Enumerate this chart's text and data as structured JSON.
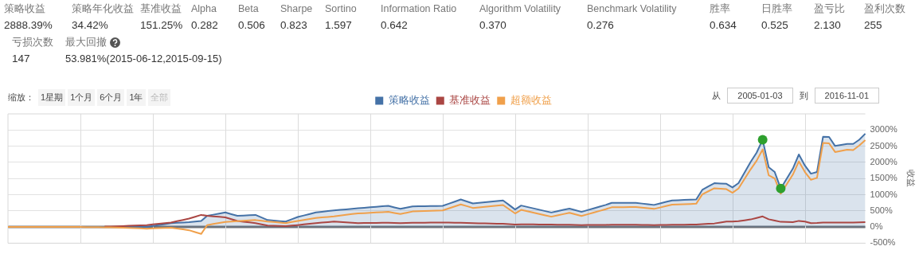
{
  "chart_data": {
    "type": "line",
    "ylabel": "收益",
    "annotations": [
      "策略收益",
      "2888.39%",
      "策略年化收益",
      "34.42%",
      "基准收益",
      "151.25%",
      "Alpha",
      "0.282",
      "Beta",
      "0.506",
      "Sharpe",
      "0.823",
      "Sortino",
      "1.597",
      "Information Ratio",
      "0.642",
      "Algorithm Volatility",
      "0.370",
      "Benchmark Volatility",
      "0.276",
      "胜率",
      "0.634",
      "日胜率",
      "0.525",
      "盈亏比",
      "2.130",
      "盈利次数",
      "255",
      "亏损次数",
      "147",
      "最大回撤",
      "53.981%(2015-06-12,2015-09-15)",
      "缩放：",
      "1星期",
      "1个月",
      "6个月",
      "1年",
      "全部",
      "从",
      "2005-01-03",
      "到",
      "2016-11-01"
    ],
    "categories": [
      null,
      null,
      null,
      null,
      null,
      null,
      null,
      null,
      null,
      null,
      null,
      null,
      null,
      null,
      null,
      null,
      null,
      null,
      null,
      null,
      null,
      null,
      null,
      null,
      null,
      null,
      null,
      null,
      null,
      null,
      null,
      null,
      null,
      null,
      null,
      null,
      null,
      null,
      null,
      null,
      null,
      null,
      null,
      null,
      null,
      null,
      null,
      null,
      null,
      null,
      null,
      null,
      null,
      null,
      null,
      null,
      null,
      null,
      null,
      null,
      null,
      null,
      null,
      null,
      null,
      null,
      null,
      null,
      null,
      null,
      null,
      null,
      null,
      null,
      null,
      null,
      null,
      null,
      null,
      null,
      null,
      null,
      null,
      null,
      null,
      null,
      null,
      null,
      null,
      null,
      null,
      null,
      null,
      null,
      null,
      null,
      null,
      null,
      null,
      null,
      null,
      null,
      null,
      null,
      null,
      null,
      null,
      null,
      null,
      null,
      null,
      null,
      null,
      null,
      null,
      null,
      null,
      null,
      null,
      null,
      null,
      null,
      null,
      null,
      null,
      null,
      null,
      null,
      null,
      null,
      null,
      null,
      null,
      null,
      null,
      null,
      null,
      null,
      null,
      null,
      null,
      null,
      null
    ],
    "series": [
      {
        "name": "策略收益",
        "type": "area",
        "color": "#4572a7",
        "values": [
          0,
          0,
          0,
          0,
          0,
          0,
          0,
          0,
          0,
          0,
          0,
          0,
          0,
          0,
          0,
          0,
          0,
          5,
          5,
          5,
          5,
          5,
          5,
          5,
          34,
          63,
          91,
          120,
          130,
          140,
          150,
          168,
          187,
          346,
          381,
          415,
          450,
          398,
          346,
          355,
          365,
          374,
          295,
          215,
          199,
          184,
          168,
          238,
          309,
          356,
          403,
          450,
          471,
          493,
          514,
          531,
          547,
          564,
          580,
          595,
          610,
          625,
          640,
          655,
          608,
          561,
          599,
          636,
          640,
          644,
          647,
          651,
          655,
          720,
          786,
          851,
          790,
          729,
          748,
          767,
          785,
          804,
          823,
          683,
          542,
          664,
          621,
          578,
          535,
          492,
          449,
          489,
          530,
          570,
          519,
          468,
          522,
          576,
          629,
          683,
          748,
          748,
          748,
          748,
          748,
          726,
          705,
          683,
          730,
          776,
          823,
          830,
          837,
          844,
          851,
          1150,
          1253,
          1356,
          1347,
          1337,
          1225,
          1356,
          1683,
          2010,
          2300,
          2700,
          1850,
          1700,
          1190,
          1498,
          1805,
          2244,
          1900,
          1650,
          1700,
          2790,
          2786,
          2506,
          2539,
          2571,
          2570,
          2700,
          2888
        ]
      },
      {
        "name": "基准收益",
        "color": "#aa4643",
        "values": [
          null,
          null,
          null,
          null,
          null,
          null,
          null,
          null,
          null,
          null,
          null,
          null,
          null,
          null,
          null,
          null,
          12,
          15,
          23,
          30,
          38,
          45,
          53,
          60,
          80,
          100,
          120,
          140,
          180,
          220,
          260,
          317,
          374,
          346,
          331,
          315,
          300,
          244,
          187,
          165,
          142,
          120,
          84,
          47,
          41,
          34,
          28,
          44,
          60,
          80,
          100,
          120,
          136,
          152,
          168,
          157,
          145,
          134,
          122,
          124,
          126,
          128,
          129,
          130,
          125,
          120,
          125,
          130,
          132,
          134,
          136,
          138,
          140,
          137,
          133,
          130,
          125,
          120,
          116,
          112,
          108,
          104,
          100,
          88,
          75,
          85,
          83,
          81,
          79,
          77,
          75,
          73,
          72,
          70,
          65,
          60,
          61,
          63,
          64,
          65,
          70,
          70,
          70,
          70,
          70,
          67,
          63,
          60,
          63,
          67,
          70,
          71,
          73,
          74,
          75,
          90,
          100,
          110,
          139,
          168,
          170,
          180,
          207,
          234,
          280,
          327,
          240,
          200,
          160,
          155,
          150,
          190,
          170,
          120,
          125,
          135,
          140,
          135,
          138,
          140,
          140,
          145,
          150
        ]
      },
      {
        "name": "超额收益",
        "color": "#f0a04b",
        "values": [
          0,
          1,
          2,
          3,
          4,
          5,
          5,
          4,
          3,
          2,
          1,
          1,
          0,
          -2,
          -4,
          -6,
          -8,
          -10,
          -17,
          -23,
          -30,
          -37,
          -43,
          -50,
          -43,
          -35,
          -28,
          -20,
          -47,
          -73,
          -100,
          -158,
          -215,
          60,
          93,
          126,
          159,
          170,
          180,
          192,
          203,
          215,
          193,
          170,
          154,
          138,
          122,
          155,
          187,
          218,
          249,
          280,
          296,
          311,
          327,
          351,
          376,
          400,
          420,
          430,
          440,
          449,
          459,
          468,
          435,
          402,
          441,
          480,
          487,
          494,
          500,
          507,
          514,
          576,
          638,
          700,
          645,
          590,
          608,
          626,
          644,
          662,
          680,
          550,
          420,
          530,
          488,
          446,
          404,
          362,
          320,
          360,
          400,
          440,
          390,
          340,
          393,
          445,
          498,
          550,
          610,
          613,
          615,
          618,
          620,
          600,
          580,
          560,
          603,
          647,
          690,
          698,
          705,
          713,
          720,
          1010,
          1105,
          1200,
          1185,
          1170,
          1060,
          1190,
          1485,
          1780,
          2050,
          2400,
          1600,
          1500,
          1030,
          1325,
          1620,
          2030,
          1700,
          1460,
          1520,
          2600,
          2590,
          2320,
          2355,
          2390,
          2380,
          2520,
          2690
        ]
      },
      {
        "type": "scatter",
        "marker": "circle",
        "color": "#2ea02e",
        "values": [
          null,
          null,
          null,
          null,
          null,
          null,
          null,
          null,
          null,
          null,
          null,
          null,
          null,
          null,
          null,
          null,
          null,
          null,
          null,
          null,
          null,
          null,
          null,
          null,
          null,
          null,
          null,
          null,
          null,
          null,
          null,
          null,
          null,
          null,
          null,
          null,
          null,
          null,
          null,
          null,
          null,
          null,
          null,
          null,
          null,
          null,
          null,
          null,
          null,
          null,
          null,
          null,
          null,
          null,
          null,
          null,
          null,
          null,
          null,
          null,
          null,
          null,
          null,
          null,
          null,
          null,
          null,
          null,
          null,
          null,
          null,
          null,
          null,
          null,
          null,
          null,
          null,
          null,
          null,
          null,
          null,
          null,
          null,
          null,
          null,
          null,
          null,
          null,
          null,
          null,
          null,
          null,
          null,
          null,
          null,
          null,
          null,
          null,
          null,
          null,
          null,
          null,
          null,
          null,
          null,
          null,
          null,
          null,
          null,
          null,
          null,
          null,
          null,
          null,
          null,
          null,
          null,
          null,
          null,
          null,
          null,
          null,
          null,
          null,
          null,
          2700,
          null,
          null,
          1190,
          null,
          null,
          null,
          null,
          null,
          null,
          null,
          null,
          null,
          null,
          null,
          null,
          null,
          null
        ]
      }
    ],
    "ylim": [
      -500,
      3500
    ],
    "yticks": [
      {
        "value": -500,
        "label": "-500%"
      },
      {
        "value": 0,
        "label": "0%"
      },
      {
        "value": 500,
        "label": "500%"
      },
      {
        "value": 1000,
        "label": "1000%"
      },
      {
        "value": 1500,
        "label": "1500%"
      },
      {
        "value": 2000,
        "label": "2000%"
      },
      {
        "value": 2500,
        "label": "2500%"
      },
      {
        "value": 3000,
        "label": "3000%"
      }
    ],
    "ref_lines": [
      {
        "axis": "y",
        "value": 0,
        "color": "#6e7279"
      }
    ],
    "grid": true,
    "legend": "top",
    "tick_labels": "y",
    "marker": "none",
    "line_style": "solid"
  }
}
